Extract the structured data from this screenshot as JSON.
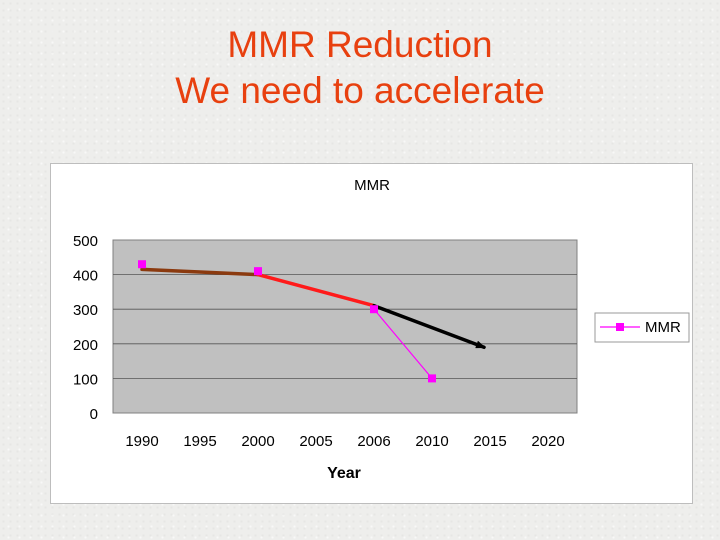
{
  "slide": {
    "title_line1": "MMR Reduction",
    "title_line2": "We need to accelerate",
    "title_color": "#e8400f"
  },
  "chart_data": {
    "type": "line",
    "title": "MMR",
    "xlabel": "Year",
    "ylabel": "",
    "categories": [
      "1990",
      "1995",
      "2000",
      "2005",
      "2006",
      "2010",
      "2015",
      "2020"
    ],
    "ylim": [
      0,
      500
    ],
    "yticks": [
      0,
      100,
      200,
      300,
      400,
      500
    ],
    "grid": true,
    "legend_position": "right",
    "series": [
      {
        "name": "MMR",
        "color": "#ff00ff",
        "marker": "square",
        "values": [
          430,
          null,
          410,
          null,
          300,
          100,
          null,
          null
        ]
      }
    ],
    "annotations": [
      {
        "name": "trend-1990-2000",
        "color": "#8b3a0f",
        "from": [
          "1990",
          415
        ],
        "to": [
          "2000",
          400
        ]
      },
      {
        "name": "trend-2000-2006",
        "color": "#ff1a1a",
        "from": [
          "2000",
          400
        ],
        "to": [
          "2006",
          310
        ]
      },
      {
        "name": "projection-arrow",
        "color": "#000000",
        "from": [
          "2006",
          310
        ],
        "to": [
          "2015",
          190
        ]
      }
    ]
  }
}
